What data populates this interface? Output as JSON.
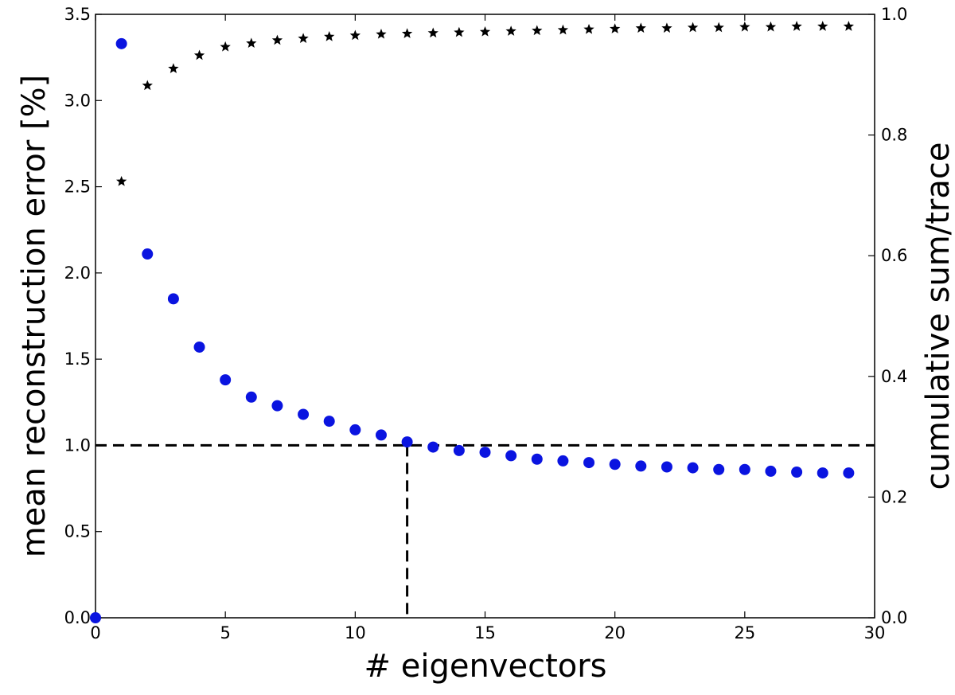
{
  "chart_data": {
    "type": "scatter",
    "title": "",
    "xlabel": "# eigenvectors",
    "ylabel": "mean reconstruction error [%]",
    "y2label": "cumulative sum/trace",
    "xlim": [
      0,
      30
    ],
    "ylim": [
      0,
      3.5
    ],
    "y2lim": [
      0,
      1.0
    ],
    "grid": false,
    "x_ticks": [
      "0",
      "5",
      "10",
      "15",
      "20",
      "25",
      "30"
    ],
    "y_ticks": [
      "0.0",
      "0.5",
      "1.0",
      "1.5",
      "2.0",
      "2.5",
      "3.0",
      "3.5"
    ],
    "y2_ticks": [
      "0.0",
      "0.2",
      "0.4",
      "0.6",
      "0.8",
      "1.0"
    ],
    "series": [
      {
        "axis": "left",
        "marker": "circle",
        "color": "#0a14e0",
        "x": [
          0,
          1,
          2,
          3,
          4,
          5,
          6,
          7,
          8,
          9,
          10,
          11,
          12,
          13,
          14,
          15,
          16,
          17,
          18,
          19,
          20,
          21,
          22,
          23,
          24,
          25,
          26,
          27,
          28,
          29
        ],
        "y": [
          0.0,
          3.33,
          2.11,
          1.85,
          1.57,
          1.38,
          1.28,
          1.23,
          1.18,
          1.14,
          1.09,
          1.06,
          1.02,
          0.99,
          0.97,
          0.96,
          0.94,
          0.92,
          0.91,
          0.9,
          0.89,
          0.88,
          0.875,
          0.87,
          0.86,
          0.86,
          0.85,
          0.845,
          0.84,
          0.84
        ]
      },
      {
        "axis": "right",
        "marker": "star",
        "color": "#000000",
        "x": [
          1,
          2,
          3,
          4,
          5,
          6,
          7,
          8,
          9,
          10,
          11,
          12,
          13,
          14,
          15,
          16,
          17,
          18,
          19,
          20,
          21,
          22,
          23,
          24,
          25,
          26,
          27,
          28,
          29
        ],
        "y": [
          0.723,
          0.882,
          0.91,
          0.932,
          0.946,
          0.952,
          0.957,
          0.96,
          0.963,
          0.965,
          0.967,
          0.968,
          0.969,
          0.97,
          0.971,
          0.972,
          0.973,
          0.974,
          0.975,
          0.976,
          0.977,
          0.977,
          0.978,
          0.978,
          0.979,
          0.979,
          0.98,
          0.98,
          0.98
        ]
      }
    ],
    "reference_lines": {
      "horizontal_y": 1.0,
      "vertical_x": 12,
      "vertical_top_y": 1.0
    }
  }
}
